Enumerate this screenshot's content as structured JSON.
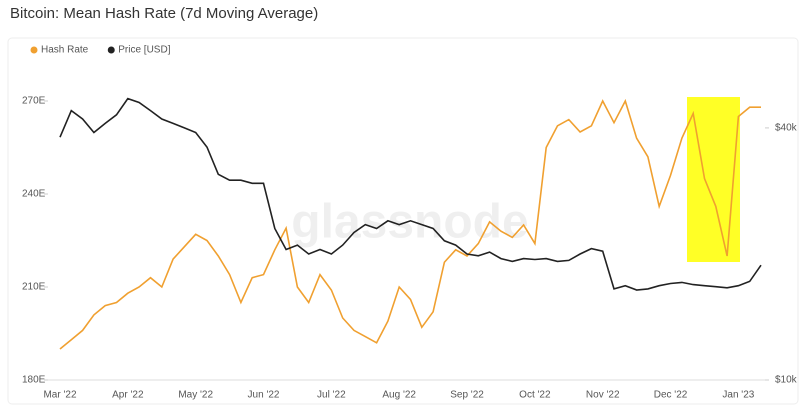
{
  "chart_data": {
    "type": "line",
    "title": "Bitcoin: Mean Hash Rate (7d Moving Average)",
    "watermark": "glassnode",
    "categories": [
      "Mar '22",
      null,
      null,
      null,
      null,
      null,
      "Apr '22",
      null,
      null,
      null,
      null,
      null,
      "May '22",
      null,
      null,
      null,
      null,
      null,
      "Jun '22",
      null,
      null,
      null,
      null,
      null,
      "Jul '22",
      null,
      null,
      null,
      null,
      null,
      "Aug '22",
      null,
      null,
      null,
      null,
      null,
      "Sep '22",
      null,
      null,
      null,
      null,
      null,
      "Oct '22",
      null,
      null,
      null,
      null,
      null,
      "Nov '22",
      null,
      null,
      null,
      null,
      null,
      "Dec '22",
      null,
      null,
      null,
      null,
      null,
      "Jan '23",
      null,
      null
    ],
    "series": [
      {
        "name": "Hash Rate",
        "color": "#f0a030",
        "axis": "y",
        "values": [
          190,
          193,
          196,
          201,
          204,
          205,
          208,
          210,
          213,
          210,
          219,
          223,
          227,
          225,
          220,
          214,
          205,
          213,
          214,
          222,
          229,
          210,
          205,
          214,
          209,
          200,
          196,
          194,
          192,
          199,
          210,
          206,
          197,
          202,
          218,
          222,
          220,
          224,
          231,
          228,
          226,
          230,
          224,
          255,
          262,
          264,
          260,
          262,
          270,
          263,
          270,
          258,
          252,
          236,
          246,
          258,
          266,
          245,
          236,
          220,
          265,
          268,
          268
        ]
      },
      {
        "name": "Price [USD]",
        "color": "#222222",
        "axis": "y2",
        "values": [
          38000,
          44000,
          42000,
          39000,
          41000,
          43000,
          47000,
          46000,
          44000,
          42000,
          41000,
          40000,
          39000,
          36000,
          31000,
          30000,
          30000,
          29500,
          29500,
          23000,
          20500,
          21000,
          20000,
          20500,
          20000,
          21000,
          22500,
          23500,
          23000,
          24000,
          23500,
          24000,
          23500,
          23000,
          21500,
          21000,
          20000,
          19800,
          20200,
          19500,
          19200,
          19500,
          19400,
          19500,
          19200,
          19300,
          20000,
          20600,
          20300,
          16500,
          16800,
          16400,
          16500,
          16800,
          17000,
          17100,
          16900,
          16800,
          16700,
          16600,
          16800,
          17200,
          18800
        ]
      }
    ],
    "ylim": [
      180,
      280
    ],
    "yticks": [
      {
        "value": 180,
        "label": "180E"
      },
      {
        "value": 210,
        "label": "210E"
      },
      {
        "value": 240,
        "label": "240E"
      },
      {
        "value": 270,
        "label": "270E"
      }
    ],
    "y2lim": [
      10000,
      55000
    ],
    "y2ticks": [
      {
        "value": 10000,
        "label": "$10k"
      },
      {
        "value": 40000,
        "label": "$40k"
      }
    ],
    "y2log": true,
    "grid": false,
    "legend": "top-left"
  }
}
